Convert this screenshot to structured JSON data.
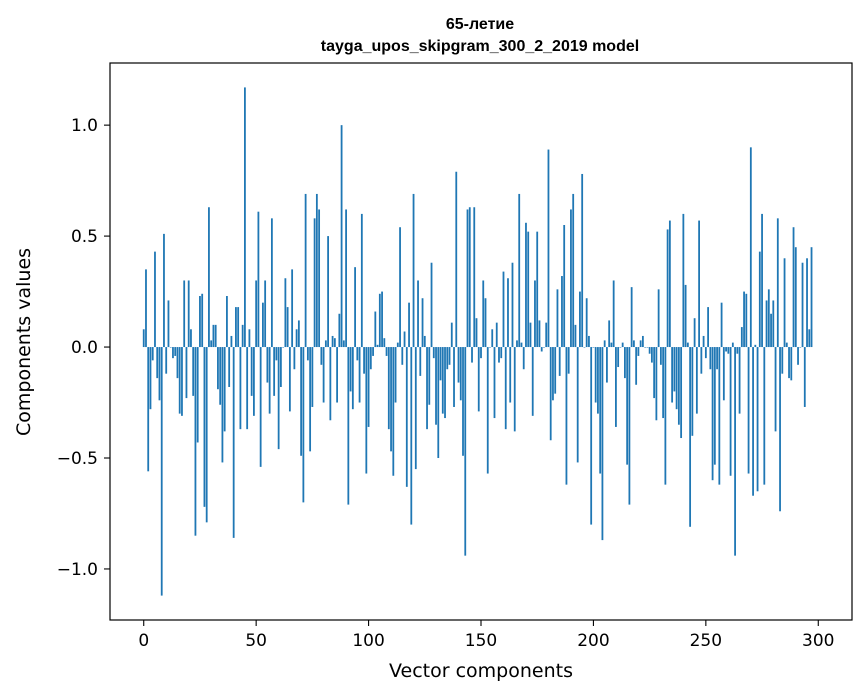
{
  "chart_data": {
    "type": "bar",
    "title_line1": "65-летие",
    "title_line2": "tayga_upos_skipgram_300_2_2019 model",
    "xlabel": "Vector components",
    "ylabel": "Components values",
    "xlim": [
      -15,
      315
    ],
    "ylim": [
      -1.23,
      1.28
    ],
    "xticks": [
      0,
      50,
      100,
      150,
      200,
      250,
      300
    ],
    "xtick_labels": [
      "0",
      "50",
      "100",
      "150",
      "200",
      "250",
      "300"
    ],
    "yticks": [
      -1.0,
      -0.5,
      0.0,
      0.5,
      1.0
    ],
    "ytick_labels": [
      "−1.0",
      "−0.5",
      "0.0",
      "0.5",
      "1.0"
    ],
    "grid": false,
    "bar_color": "#1f77b4",
    "values": [
      0.08,
      0.35,
      -0.56,
      -0.28,
      -0.06,
      0.43,
      -0.14,
      -0.24,
      -1.12,
      0.51,
      -0.12,
      0.21,
      0.0,
      -0.05,
      -0.04,
      -0.14,
      -0.3,
      -0.31,
      0.3,
      -0.23,
      0.3,
      0.08,
      -0.22,
      -0.85,
      -0.43,
      0.23,
      0.24,
      -0.72,
      -0.79,
      0.63,
      0.03,
      0.1,
      0.1,
      -0.19,
      -0.26,
      -0.52,
      -0.38,
      0.23,
      -0.18,
      0.05,
      -0.86,
      0.18,
      0.18,
      -0.37,
      0.1,
      1.17,
      -0.37,
      0.08,
      -0.22,
      -0.31,
      0.3,
      0.61,
      -0.54,
      0.2,
      0.3,
      -0.16,
      -0.3,
      0.58,
      -0.22,
      -0.06,
      -0.46,
      -0.18,
      0.0,
      0.31,
      0.18,
      -0.29,
      0.35,
      -0.1,
      0.08,
      0.12,
      -0.49,
      -0.7,
      0.69,
      -0.06,
      -0.47,
      -0.27,
      0.58,
      0.69,
      0.62,
      -0.08,
      -0.25,
      0.03,
      0.5,
      -0.33,
      0.05,
      0.04,
      -0.25,
      0.15,
      1.0,
      0.03,
      0.62,
      -0.71,
      -0.2,
      -0.28,
      0.36,
      -0.06,
      -0.25,
      0.6,
      -0.12,
      -0.57,
      -0.36,
      -0.1,
      -0.04,
      0.16,
      0.01,
      0.24,
      0.25,
      0.04,
      -0.04,
      -0.37,
      -0.47,
      -0.58,
      -0.25,
      0.02,
      0.54,
      -0.08,
      0.07,
      -0.63,
      0.2,
      -0.8,
      0.69,
      -0.55,
      0.3,
      -0.13,
      0.22,
      0.05,
      -0.37,
      -0.26,
      0.38,
      -0.05,
      -0.35,
      -0.5,
      -0.15,
      -0.3,
      -0.32,
      -0.1,
      -0.08,
      0.11,
      -0.27,
      0.79,
      -0.16,
      -0.24,
      -0.49,
      -0.94,
      0.62,
      0.63,
      -0.07,
      0.63,
      0.13,
      -0.29,
      -0.05,
      0.3,
      0.22,
      -0.57,
      0.0,
      0.08,
      -0.32,
      0.11,
      -0.07,
      -0.05,
      0.34,
      -0.37,
      0.31,
      -0.25,
      0.38,
      -0.38,
      0.03,
      0.69,
      0.02,
      -0.1,
      0.56,
      0.52,
      0.11,
      -0.31,
      0.3,
      0.52,
      0.12,
      -0.02,
      0.0,
      0.11,
      0.89,
      -0.42,
      -0.24,
      -0.21,
      0.26,
      -0.13,
      0.32,
      0.55,
      -0.62,
      -0.12,
      0.62,
      0.69,
      0.1,
      -0.52,
      0.25,
      0.78,
      0.0,
      0.22,
      0.05,
      -0.8,
      0.0,
      -0.25,
      -0.3,
      -0.57,
      -0.87,
      0.03,
      -0.16,
      0.12,
      0.02,
      0.3,
      -0.36,
      -0.09,
      0.0,
      0.02,
      -0.14,
      -0.53,
      -0.71,
      0.27,
      0.03,
      -0.17,
      -0.04,
      0.03,
      0.05,
      0.0,
      0.0,
      -0.03,
      -0.07,
      -0.23,
      -0.33,
      0.26,
      -0.08,
      -0.32,
      -0.62,
      0.53,
      0.57,
      -0.25,
      -0.2,
      -0.28,
      -0.35,
      -0.41,
      0.6,
      0.28,
      0.02,
      -0.81,
      -0.4,
      0.13,
      -0.3,
      0.57,
      -0.12,
      0.05,
      -0.05,
      0.18,
      -0.1,
      -0.6,
      -0.53,
      -0.1,
      -0.62,
      0.2,
      -0.24,
      -0.02,
      -0.03,
      -0.58,
      0.02,
      -0.94,
      -0.03,
      -0.3,
      0.09,
      0.25,
      0.24,
      -0.57,
      0.9,
      -0.67,
      0.01,
      -0.65,
      0.43,
      0.6,
      -0.62,
      0.21,
      0.26,
      0.15,
      0.21,
      -0.38,
      0.58,
      -0.74,
      -0.12,
      0.4,
      0.02,
      -0.14,
      -0.15,
      0.54,
      0.45,
      -0.08,
      0.0,
      0.38,
      -0.27,
      0.4,
      0.08,
      0.45
    ]
  }
}
